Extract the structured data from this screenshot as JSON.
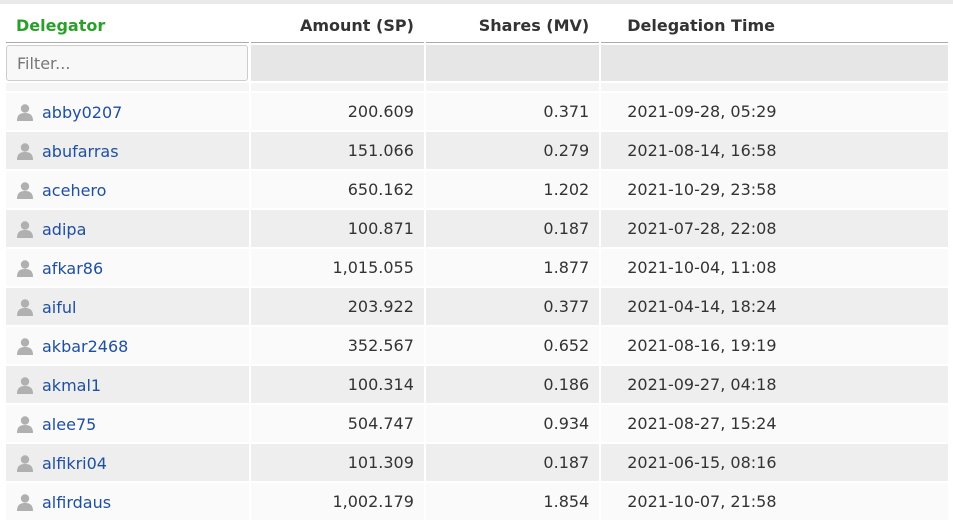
{
  "table": {
    "headers": [
      "Delegator",
      "Amount (SP)",
      "Shares (MV)",
      "Delegation Time"
    ],
    "filter_placeholder": "Filter...",
    "rows": [
      [
        "abby0207",
        "200.609",
        "0.371",
        "2021-09-28, 05:29"
      ],
      [
        "abufarras",
        "151.066",
        "0.279",
        "2021-08-14, 16:58"
      ],
      [
        "acehero",
        "650.162",
        "1.202",
        "2021-10-29, 23:58"
      ],
      [
        "adipa",
        "100.871",
        "0.187",
        "2021-07-28, 22:08"
      ],
      [
        "afkar86",
        "1,015.055",
        "1.877",
        "2021-10-04, 11:08"
      ],
      [
        "aiful",
        "203.922",
        "0.377",
        "2021-04-14, 18:24"
      ],
      [
        "akbar2468",
        "352.567",
        "0.652",
        "2021-08-16, 19:19"
      ],
      [
        "akmal1",
        "100.314",
        "0.186",
        "2021-09-27, 04:18"
      ],
      [
        "alee75",
        "504.747",
        "0.934",
        "2021-08-27, 15:24"
      ],
      [
        "alfikri04",
        "101.309",
        "0.187",
        "2021-06-15, 08:16"
      ],
      [
        "alfirdaus",
        "1,002.179",
        "1.854",
        "2021-10-07, 21:58"
      ]
    ]
  }
}
